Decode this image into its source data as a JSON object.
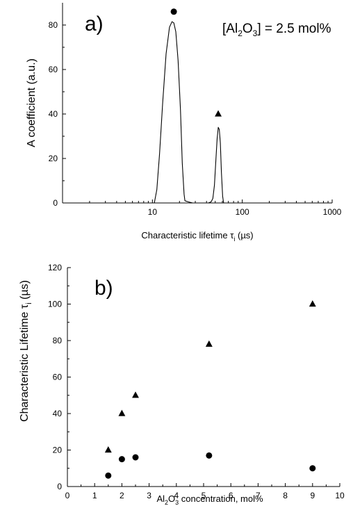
{
  "colors": {
    "ink": "#000000",
    "background": "#ffffff"
  },
  "chart_data": [
    {
      "type": "line",
      "panel_label": "a)",
      "annotation": {
        "prefix": "[Al",
        "sub1": "2",
        "mid": "O",
        "sub2": "3",
        "suffix": "] = 2.5 mol%"
      },
      "xlabel": {
        "main": "Characteristic lifetime τ",
        "sub": "i",
        "unit": " (µs)"
      },
      "ylabel": "A coefficient (a.u.)",
      "xscale": "log",
      "xlim": [
        1,
        1000
      ],
      "ylim": [
        0,
        90
      ],
      "xticks": [
        {
          "v": 10,
          "label": "10"
        },
        {
          "v": 100,
          "label": "100"
        },
        {
          "v": 1000,
          "label": "1000"
        }
      ],
      "yticks": [
        {
          "v": 0,
          "label": "0"
        },
        {
          "v": 20,
          "label": "20"
        },
        {
          "v": 40,
          "label": "40"
        },
        {
          "v": 60,
          "label": "60"
        },
        {
          "v": 80,
          "label": "80"
        }
      ],
      "series": [
        {
          "x": [
            10.5,
            11.2,
            12.0,
            13.0,
            14.2,
            15.5,
            16.5,
            17.3,
            18.2,
            19.3,
            20.5,
            21.5,
            22.5,
            23.0,
            25.0,
            28.0,
            31.0,
            34.0,
            38.0,
            42.0,
            45.0,
            47.0,
            49.0,
            51.0,
            52.5,
            54.0,
            55.5,
            57.0,
            58.5,
            60.5,
            62.0,
            70.0,
            100.0,
            1000.0
          ],
          "y": [
            0,
            6,
            22,
            45,
            67,
            79,
            81.5,
            81,
            77,
            64,
            42,
            18,
            4,
            1,
            0.5,
            0,
            0,
            0,
            0,
            0,
            0.5,
            2,
            8,
            20,
            29,
            34,
            33,
            27,
            14,
            3,
            0,
            0,
            0,
            0
          ]
        }
      ],
      "markers": [
        {
          "shape": "circle",
          "x": 17.3,
          "y": 86
        },
        {
          "shape": "triangle",
          "x": 54.0,
          "y": 40
        }
      ]
    },
    {
      "type": "scatter",
      "panel_label": "b)",
      "xlabel": {
        "pre": "Al",
        "sub1": "2",
        "mid": "O",
        "sub2": "3",
        "post": " concentration, mol%"
      },
      "ylabel": {
        "main": "Characteristic Lifetime τ",
        "sub": "i",
        "unit": " (µs)"
      },
      "xlim": [
        0,
        10
      ],
      "ylim": [
        0,
        120
      ],
      "xticks": [
        "0",
        "1",
        "2",
        "3",
        "4",
        "5",
        "6",
        "7",
        "8",
        "9",
        "10"
      ],
      "yticks": [
        "0",
        "20",
        "40",
        "60",
        "80",
        "100",
        "120"
      ],
      "series": [
        {
          "marker": "circle",
          "x": [
            1.5,
            2.0,
            2.5,
            5.2,
            9.0
          ],
          "y": [
            6,
            15,
            16,
            17,
            10
          ]
        },
        {
          "marker": "triangle",
          "x": [
            1.5,
            2.0,
            2.5,
            5.2,
            9.0
          ],
          "y": [
            20,
            40,
            50,
            78,
            100
          ]
        }
      ]
    }
  ]
}
